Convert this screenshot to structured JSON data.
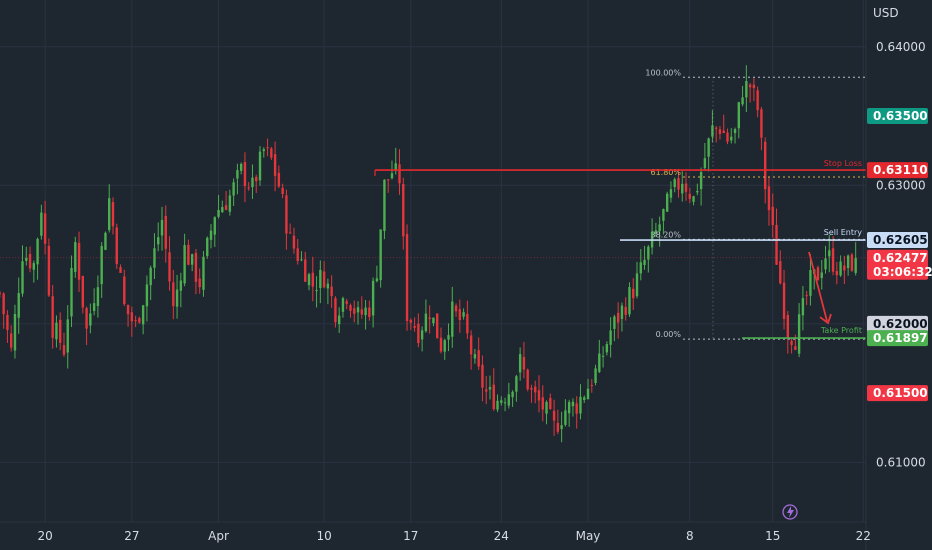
{
  "colors": {
    "background": "#1e2630",
    "grid": "#2a3340",
    "axis_text": "#d7dce3",
    "bull": "#4caf50",
    "bear": "#e5363b",
    "stop_loss": "#e5282d",
    "sell_entry": "#c8dcf5",
    "take_profit": "#4caf50",
    "fib_gray": "#b9c0ca",
    "fib_gold": "#d8b34a",
    "price_badge": "#f23645",
    "teal_badge": "#0e9982",
    "gray_badge": "#d1d4dc"
  },
  "chart_data": {
    "type": "candlestick",
    "title": "",
    "currency": "USD",
    "ylim": [
      0.6075,
      0.6415
    ],
    "y_ticks": [
      0.61,
      0.62,
      0.63,
      0.64
    ],
    "y_tick_labels": [
      "0.61000",
      "0.62000",
      "0.63000",
      "0.64000"
    ],
    "x_ticks": [
      {
        "label": "20",
        "bar": 12
      },
      {
        "label": "27",
        "bar": 35
      },
      {
        "label": "Apr",
        "bar": 58
      },
      {
        "label": "10",
        "bar": 86
      },
      {
        "label": "17",
        "bar": 109
      },
      {
        "label": "24",
        "bar": 133
      },
      {
        "label": "May",
        "bar": 156
      },
      {
        "label": "8",
        "bar": 183
      },
      {
        "label": "15",
        "bar": 205
      },
      {
        "label": "22",
        "bar": 229
      }
    ],
    "bar_count": 245,
    "anchors": [
      [
        0,
        0.6222
      ],
      [
        3,
        0.618
      ],
      [
        6,
        0.6252
      ],
      [
        9,
        0.6243
      ],
      [
        11,
        0.6285
      ],
      [
        14,
        0.6198
      ],
      [
        17,
        0.6182
      ],
      [
        20,
        0.6258
      ],
      [
        23,
        0.6195
      ],
      [
        26,
        0.6235
      ],
      [
        29,
        0.629
      ],
      [
        33,
        0.6212
      ],
      [
        36,
        0.6198
      ],
      [
        40,
        0.624
      ],
      [
        43,
        0.6275
      ],
      [
        46,
        0.621
      ],
      [
        49,
        0.6254
      ],
      [
        53,
        0.623
      ],
      [
        57,
        0.628
      ],
      [
        61,
        0.6292
      ],
      [
        64,
        0.631
      ],
      [
        67,
        0.6298
      ],
      [
        70,
        0.6325
      ],
      [
        72,
        0.6318
      ],
      [
        74,
        0.63
      ],
      [
        77,
        0.626
      ],
      [
        80,
        0.6245
      ],
      [
        83,
        0.6228
      ],
      [
        86,
        0.6235
      ],
      [
        89,
        0.621
      ],
      [
        92,
        0.6222
      ],
      [
        95,
        0.6205
      ],
      [
        98,
        0.6212
      ],
      [
        100,
        0.624
      ],
      [
        102,
        0.63
      ],
      [
        104,
        0.631
      ],
      [
        106,
        0.6305
      ],
      [
        108,
        0.6208
      ],
      [
        111,
        0.6195
      ],
      [
        114,
        0.621
      ],
      [
        117,
        0.6185
      ],
      [
        120,
        0.6208
      ],
      [
        123,
        0.62
      ],
      [
        126,
        0.617
      ],
      [
        129,
        0.615
      ],
      [
        132,
        0.6145
      ],
      [
        135,
        0.6152
      ],
      [
        138,
        0.6172
      ],
      [
        141,
        0.615
      ],
      [
        144,
        0.614
      ],
      [
        147,
        0.6125
      ],
      [
        150,
        0.6138
      ],
      [
        153,
        0.6142
      ],
      [
        156,
        0.6155
      ],
      [
        159,
        0.617
      ],
      [
        162,
        0.6195
      ],
      [
        165,
        0.621
      ],
      [
        168,
        0.6225
      ],
      [
        170,
        0.6238
      ],
      [
        172,
        0.6252
      ],
      [
        175,
        0.6272
      ],
      [
        178,
        0.6292
      ],
      [
        181,
        0.6305
      ],
      [
        184,
        0.629
      ],
      [
        187,
        0.632
      ],
      [
        189,
        0.634
      ],
      [
        191,
        0.6342
      ],
      [
        193,
        0.6333
      ],
      [
        195,
        0.6338
      ],
      [
        197,
        0.637
      ],
      [
        199,
        0.6372
      ],
      [
        201,
        0.6355
      ],
      [
        203,
        0.63
      ],
      [
        205,
        0.6265
      ],
      [
        207,
        0.623
      ],
      [
        209,
        0.6195
      ],
      [
        211,
        0.619
      ],
      [
        213,
        0.621
      ],
      [
        215,
        0.623
      ],
      [
        217,
        0.6236
      ],
      [
        219,
        0.625
      ],
      [
        221,
        0.6245
      ],
      [
        223,
        0.6238
      ],
      [
        225,
        0.6242
      ],
      [
        227,
        0.6247
      ]
    ],
    "levels": {
      "stop_loss": {
        "label": "Stop Loss",
        "value": "0.63110",
        "price": 0.6311
      },
      "sell_entry": {
        "label": "Sell Entry",
        "value": "0.62605",
        "price": 0.62605
      },
      "take_profit": {
        "label": "Take Profit",
        "value": "0.61897",
        "price": 0.61897
      }
    },
    "fibonacci": [
      {
        "label": "100.00%",
        "price": 0.6378
      },
      {
        "label": "61.80%",
        "price": 0.6306
      },
      {
        "label": "38.20%",
        "price": 0.6261
      },
      {
        "label": "0.00%",
        "price": 0.6189
      }
    ],
    "price_badges": [
      {
        "value": "0.63500",
        "price": 0.635,
        "color": "#0e9982",
        "text": "#ffffff"
      },
      {
        "value": "0.61500",
        "price": 0.615,
        "color": "#f23645",
        "text": "#ffffff"
      }
    ],
    "current_price": {
      "value": "0.62477",
      "countdown": "03:06:32",
      "price": 0.62477
    },
    "round_badge": {
      "value": "0.62000",
      "price": 0.62
    }
  }
}
